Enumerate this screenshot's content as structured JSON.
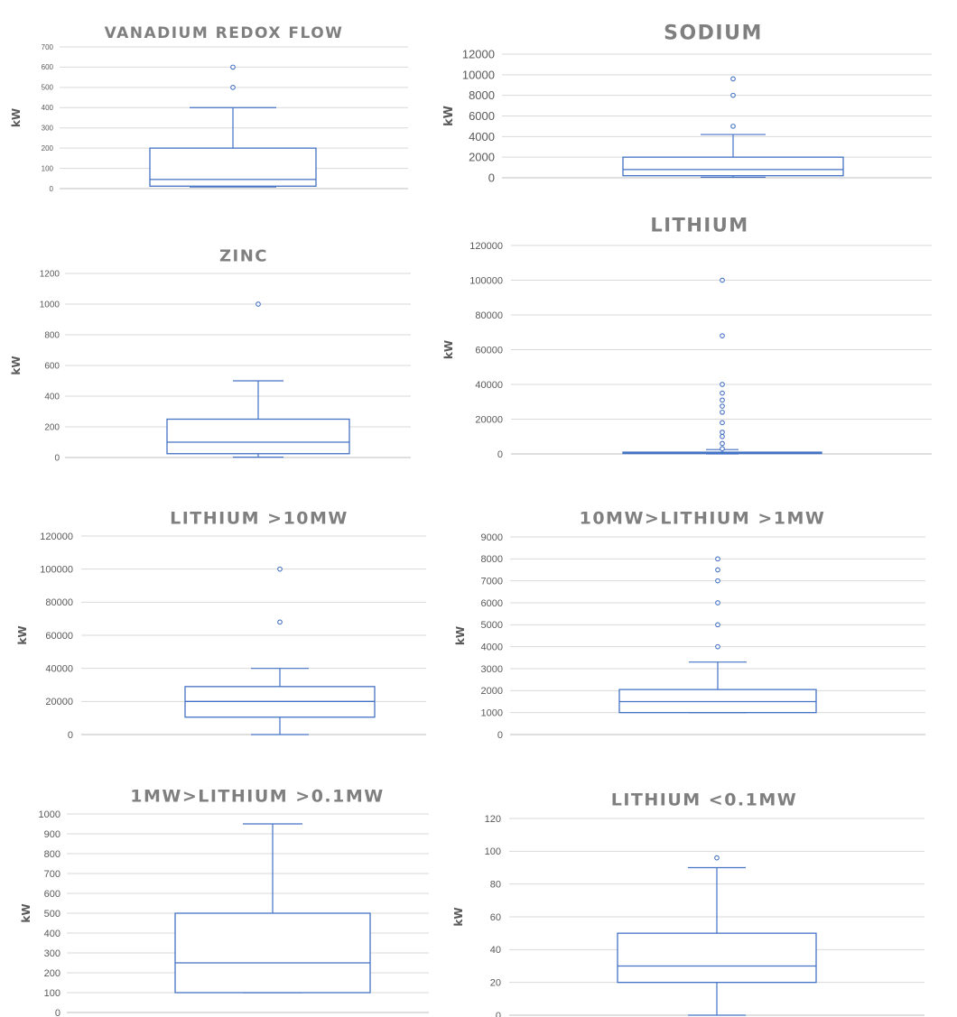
{
  "chart_data": [
    {
      "type": "box",
      "title": "VANADIUM REDOX FLOW",
      "ylabel": "kW",
      "ylim": [
        0,
        700
      ],
      "yticks": [
        0,
        100,
        200,
        300,
        400,
        500,
        600,
        700
      ],
      "box": {
        "whisker_low": 8,
        "q1": 12,
        "median": 45,
        "q3": 200,
        "whisker_high": 400
      },
      "outliers": [
        500,
        600
      ],
      "style": {
        "box_color": "#4472c4",
        "grid": true
      }
    },
    {
      "type": "box",
      "title": "SODIUM",
      "ylabel": "kW",
      "ylim": [
        0,
        12000
      ],
      "yticks": [
        0,
        2000,
        4000,
        6000,
        8000,
        10000,
        12000
      ],
      "box": {
        "whisker_low": 50,
        "q1": 200,
        "median": 800,
        "q3": 2000,
        "whisker_high": 4200
      },
      "outliers": [
        5000,
        8000,
        9600
      ],
      "style": {
        "box_color": "#4472c4",
        "grid": true
      }
    },
    {
      "type": "box",
      "title": "ZINC",
      "ylabel": "kW",
      "ylim": [
        0,
        1200
      ],
      "yticks": [
        0,
        200,
        400,
        600,
        800,
        1000,
        1200
      ],
      "box": {
        "whisker_low": 2,
        "q1": 25,
        "median": 100,
        "q3": 250,
        "whisker_high": 500
      },
      "outliers": [
        1000
      ],
      "style": {
        "box_color": "#4472c4",
        "grid": true
      }
    },
    {
      "type": "box",
      "title": "LITHIUM",
      "ylabel": "kW",
      "ylim": [
        0,
        120000
      ],
      "yticks": [
        0,
        20000,
        40000,
        60000,
        80000,
        100000,
        120000
      ],
      "box": {
        "whisker_low": 0,
        "q1": 200,
        "median": 600,
        "q3": 1000,
        "whisker_high": 2500
      },
      "outliers": [
        3000,
        6000,
        10000,
        12500,
        18000,
        24000,
        27500,
        31000,
        35000,
        40000,
        68000,
        100000
      ],
      "style": {
        "box_color": "#4472c4",
        "grid": true
      }
    },
    {
      "type": "box",
      "title": "LITHIUM >10MW",
      "ylabel": "kW",
      "ylim": [
        0,
        120000
      ],
      "yticks": [
        0,
        20000,
        40000,
        60000,
        80000,
        100000,
        120000
      ],
      "box": {
        "whisker_low": 0,
        "q1": 10500,
        "median": 20000,
        "q3": 29000,
        "whisker_high": 40000
      },
      "outliers": [
        68000,
        100000
      ],
      "style": {
        "box_color": "#4472c4",
        "grid": true
      }
    },
    {
      "type": "box",
      "title": "10MW>LITHIUM >1MW",
      "ylabel": "kW",
      "ylim": [
        0,
        9000
      ],
      "yticks": [
        0,
        1000,
        2000,
        3000,
        4000,
        5000,
        6000,
        7000,
        8000,
        9000
      ],
      "box": {
        "whisker_low": 1000,
        "q1": 1000,
        "median": 1500,
        "q3": 2050,
        "whisker_high": 3300
      },
      "outliers": [
        4000,
        5000,
        6000,
        7000,
        7500,
        8000
      ],
      "style": {
        "box_color": "#4472c4",
        "grid": true
      }
    },
    {
      "type": "box",
      "title": "1MW>LITHIUM >0.1MW",
      "ylabel": "kW",
      "ylim": [
        0,
        1000
      ],
      "yticks": [
        0,
        100,
        200,
        300,
        400,
        500,
        600,
        700,
        800,
        900,
        1000
      ],
      "box": {
        "whisker_low": 100,
        "q1": 100,
        "median": 250,
        "q3": 500,
        "whisker_high": 950
      },
      "outliers": [],
      "style": {
        "box_color": "#4472c4",
        "grid": true
      }
    },
    {
      "type": "box",
      "title": "LITHIUM <0.1MW",
      "ylabel": "kW",
      "ylim": [
        0,
        120
      ],
      "yticks": [
        0,
        20,
        40,
        60,
        80,
        100,
        120
      ],
      "box": {
        "whisker_low": 0,
        "q1": 20,
        "median": 30,
        "q3": 50,
        "whisker_high": 90
      },
      "outliers": [
        96
      ],
      "style": {
        "box_color": "#4472c4",
        "grid": true
      }
    }
  ]
}
